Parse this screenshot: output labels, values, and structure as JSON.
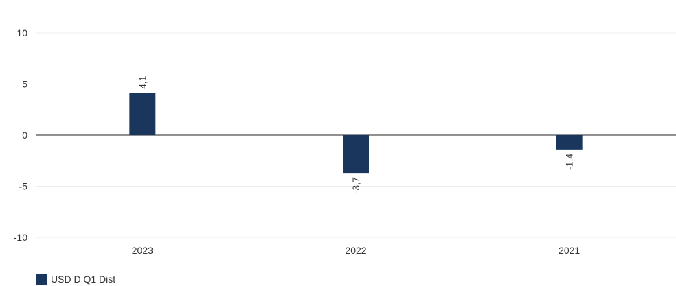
{
  "chart_data": {
    "type": "bar",
    "categories": [
      "2023",
      "2022",
      "2021"
    ],
    "series": [
      {
        "name": "USD D Q1 Dist",
        "values": [
          4.1,
          -3.7,
          -1.4
        ],
        "color": "#1b365d"
      }
    ],
    "data_labels": [
      "4,1",
      "-3,7",
      "-1,4"
    ],
    "y_ticks": [
      10,
      5,
      0,
      -5,
      -10
    ],
    "y_tick_labels": [
      "10",
      "5",
      "0",
      "-5",
      "-10"
    ],
    "ylim": [
      -10,
      10
    ],
    "grid": true,
    "legend_position": "bottom-left"
  }
}
